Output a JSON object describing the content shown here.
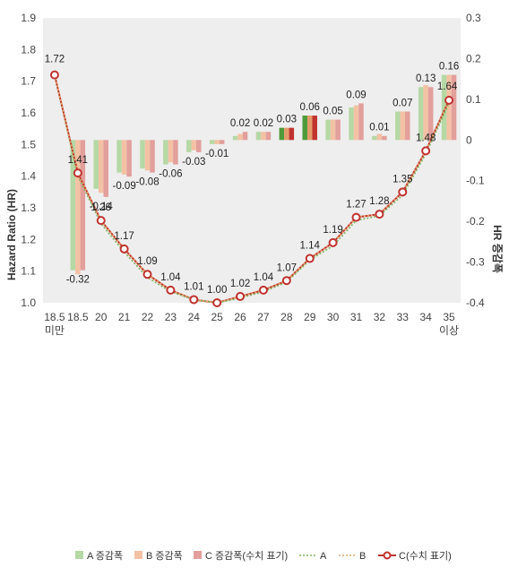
{
  "chart_data": {
    "type": "bar+line",
    "categories": [
      "18.5\n미만",
      "18.5",
      "20",
      "21",
      "22",
      "23",
      "24",
      "25",
      "26",
      "27",
      "28",
      "29",
      "30",
      "31",
      "32",
      "33",
      "34",
      "35\n이상"
    ],
    "ylabel_left": "Hazard Ratio (HR)",
    "ylabel_right": "HR 증감폭",
    "ylim_left": [
      1.0,
      1.9
    ],
    "ylim_right": [
      -0.4,
      0.3
    ],
    "yticks_left": [
      "1.0",
      "1.1",
      "1.2",
      "1.3",
      "1.4",
      "1.5",
      "1.6",
      "1.7",
      "1.8",
      "1.9"
    ],
    "yticks_right": [
      "-0.4",
      "-0.3",
      "-0.2",
      "-0.1",
      "0",
      "0.1",
      "0.2",
      "0.3"
    ],
    "bar_series": [
      {
        "name": "A 증감폭",
        "color": "#b5d8a4",
        "values": [
          null,
          -0.32,
          -0.12,
          -0.08,
          -0.07,
          -0.06,
          -0.03,
          -0.01,
          0.01,
          0.02,
          0.03,
          0.06,
          0.05,
          0.08,
          0.01,
          0.07,
          0.13,
          0.16
        ]
      },
      {
        "name": "B 증감폭",
        "color": "#f3c1a4",
        "values": [
          null,
          -0.33,
          -0.13,
          -0.085,
          -0.075,
          -0.055,
          -0.025,
          -0.01,
          0.015,
          0.02,
          0.03,
          0.06,
          0.05,
          0.085,
          0.015,
          0.07,
          0.135,
          0.16
        ]
      },
      {
        "name": "C 증감폭(수치 표기)",
        "color": "#e29f9b",
        "values": [
          null,
          -0.32,
          -0.14,
          -0.09,
          -0.08,
          -0.06,
          -0.03,
          -0.01,
          0.02,
          0.02,
          0.03,
          0.06,
          0.05,
          0.09,
          0.01,
          0.07,
          0.13,
          0.16
        ]
      }
    ],
    "bar_labels": [
      "",
      "-0.32",
      "-0.14",
      "-0.09",
      "-0.08",
      "-0.06",
      "-0.03",
      "-0.01",
      "0.02",
      "0.02",
      "0.03",
      "0.06",
      "0.05",
      "0.09",
      "0.01",
      "0.07",
      "0.13",
      "0.16"
    ],
    "highlight_index": [
      10,
      11
    ],
    "highlight_colors": [
      "#4f9a3a",
      "#e39b6a",
      "#c0332f"
    ],
    "line_series": [
      {
        "name": "A",
        "color": "#7fb55a",
        "values": [
          1.72,
          1.4,
          1.25,
          1.16,
          1.08,
          1.035,
          1.01,
          1.0,
          1.015,
          1.035,
          1.065,
          1.135,
          1.18,
          1.26,
          1.275,
          1.34,
          1.47,
          1.63
        ]
      },
      {
        "name": "B",
        "color": "#e8a56d",
        "values": [
          1.72,
          1.41,
          1.26,
          1.17,
          1.09,
          1.04,
          1.01,
          1.0,
          1.02,
          1.04,
          1.07,
          1.14,
          1.19,
          1.27,
          1.28,
          1.35,
          1.48,
          1.64
        ]
      },
      {
        "name": "C(수치 표기)",
        "color": "#c0332f",
        "values": [
          1.72,
          1.41,
          1.26,
          1.17,
          1.09,
          1.04,
          1.01,
          1.0,
          1.02,
          1.04,
          1.07,
          1.14,
          1.19,
          1.27,
          1.28,
          1.35,
          1.48,
          1.64
        ]
      }
    ],
    "line_labels": [
      "1.72",
      "1.41",
      "1.26",
      "1.17",
      "1.09",
      "1.04",
      "1.01",
      "1.00",
      "1.02",
      "1.04",
      "1.07",
      "1.14",
      "1.19",
      "1.27",
      "1.28",
      "1.35",
      "1.48",
      "1.64"
    ],
    "grid": false,
    "legend_position": "bottom"
  }
}
